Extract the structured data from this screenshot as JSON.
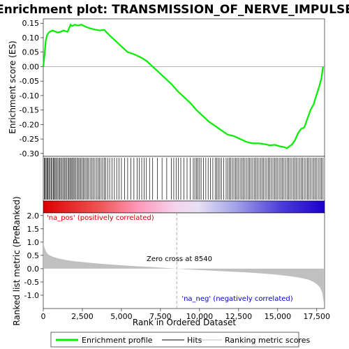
{
  "chart_data": {
    "type": "line",
    "title": "Enrichment plot: TRANSMISSION_OF_NERVE_IMPULSE",
    "top_panel": {
      "ylabel": "Enrichment score (ES)",
      "ylim": [
        -0.31,
        0.165
      ],
      "yticks": [
        0.15,
        0.1,
        0.05,
        0.0,
        -0.05,
        -0.1,
        -0.15,
        -0.2,
        -0.25,
        -0.3
      ],
      "ytick_labels": [
        "0.15",
        "0.10",
        "0.05",
        "0.00",
        "-0.05",
        "-0.10",
        "-0.15",
        "-0.20",
        "-0.25",
        "-0.30"
      ],
      "series_name": "Enrichment profile",
      "line_color": "#00ee00",
      "x": [
        0,
        80,
        160,
        250,
        400,
        600,
        900,
        1100,
        1300,
        1550,
        1750,
        1850,
        2000,
        2200,
        2450,
        2700,
        3000,
        3300,
        3600,
        3900,
        4200,
        4600,
        5000,
        5400,
        5700,
        6000,
        6300,
        6600,
        7000,
        7400,
        7800,
        8200,
        8600,
        9000,
        9400,
        9800,
        10200,
        10600,
        11000,
        11400,
        11800,
        12200,
        12600,
        13000,
        13400,
        13800,
        14200,
        14500,
        14800,
        15100,
        15400,
        15600,
        15750,
        15900,
        16100,
        16300,
        16500,
        16700,
        16900,
        17100,
        17300,
        17500,
        17650,
        17800,
        17900
      ],
      "y": [
        0.0,
        0.04,
        0.09,
        0.11,
        0.12,
        0.125,
        0.118,
        0.12,
        0.125,
        0.12,
        0.145,
        0.14,
        0.145,
        0.142,
        0.145,
        0.138,
        0.132,
        0.128,
        0.125,
        0.127,
        0.11,
        0.09,
        0.07,
        0.05,
        0.045,
        0.038,
        0.03,
        0.02,
        0.0,
        -0.02,
        -0.04,
        -0.06,
        -0.085,
        -0.105,
        -0.125,
        -0.15,
        -0.17,
        -0.19,
        -0.205,
        -0.22,
        -0.235,
        -0.24,
        -0.25,
        -0.26,
        -0.265,
        -0.265,
        -0.268,
        -0.272,
        -0.27,
        -0.275,
        -0.278,
        -0.282,
        -0.275,
        -0.27,
        -0.255,
        -0.23,
        -0.215,
        -0.21,
        -0.18,
        -0.15,
        -0.13,
        -0.095,
        -0.07,
        -0.04,
        0.0
      ]
    },
    "hits_panel": {
      "hit_positions": [
        60,
        120,
        180,
        240,
        300,
        360,
        420,
        500,
        560,
        640,
        700,
        760,
        830,
        900,
        980,
        1050,
        1120,
        1200,
        1280,
        1350,
        1420,
        1500,
        1580,
        1650,
        1720,
        1790,
        1860,
        1930,
        2000,
        2080,
        2160,
        2240,
        2320,
        2400,
        2480,
        2560,
        2640,
        2730,
        2820,
        2900,
        3000,
        3100,
        3200,
        3300,
        3400,
        3500,
        3600,
        3700,
        3800,
        3900,
        4000,
        4120,
        4250,
        4400,
        4550,
        4700,
        4850,
        5000,
        5200,
        5400,
        5600,
        5800,
        6000,
        6150,
        6300,
        6450,
        6600,
        6800,
        7000,
        7300,
        7600,
        7900,
        8200,
        8350,
        8500,
        8650,
        8800,
        9000,
        9200,
        9400,
        9600,
        9700,
        9800,
        9900,
        10000,
        10100,
        10250,
        10400,
        10550,
        10700,
        10850,
        11000,
        11100,
        11200,
        11300,
        11400,
        11550,
        11700,
        11800,
        11900,
        12000,
        12100,
        12200,
        12300,
        12400,
        12500,
        12600,
        12700,
        12800,
        12900,
        13000,
        13100,
        13200,
        13300,
        13400,
        13500,
        13600,
        13700,
        13800,
        13900,
        14000,
        14100,
        14200,
        14300,
        14400,
        14500,
        14600,
        14700,
        14800,
        14900,
        15000,
        15100,
        15200,
        15300,
        15400,
        15500,
        15600,
        15700,
        15800,
        15900,
        16000,
        16100,
        16200,
        16300,
        16400,
        16500,
        16600,
        16700,
        16800,
        16900,
        17000,
        17100,
        17200,
        17300,
        17400,
        17500,
        17600,
        17700,
        17800,
        17900
      ],
      "heatmap_left_color": "#dd0000",
      "heatmap_right_color": "#1a00cc"
    },
    "bottom_panel": {
      "ylabel": "Ranked list metric (PreRanked)",
      "ylim": [
        -1.5,
        2.1
      ],
      "yticks": [
        2.0,
        1.5,
        1.0,
        0.5,
        0.0,
        -0.5,
        -1.0
      ],
      "ytick_labels": [
        "2.0",
        "1.5",
        "1.0",
        "0.5",
        "0.0",
        "-0.5",
        "-1.0"
      ],
      "fill_color": "#c0c0c0",
      "metric_x": [
        0,
        30,
        100,
        200,
        350,
        600,
        1000,
        1500,
        2000,
        3000,
        4000,
        5000,
        6000,
        7000,
        8000,
        8540,
        9000,
        10000,
        11000,
        12000,
        13000,
        14000,
        15000,
        16000,
        16500,
        17000,
        17300,
        17500,
        17700,
        17850,
        17950
      ],
      "metric_y": [
        1.05,
        0.9,
        0.75,
        0.62,
        0.52,
        0.45,
        0.38,
        0.32,
        0.28,
        0.22,
        0.17,
        0.13,
        0.09,
        0.06,
        0.02,
        0.0,
        -0.02,
        -0.05,
        -0.08,
        -0.11,
        -0.14,
        -0.18,
        -0.23,
        -0.3,
        -0.35,
        -0.42,
        -0.5,
        -0.58,
        -0.7,
        -0.9,
        -1.3
      ],
      "zero_cross_text": "Zero cross at 8540",
      "zero_cross": 8540,
      "pos_label": "'na_pos' (positively correlated)",
      "neg_label": "'na_neg' (negatively correlated)",
      "pos_label_color": "#cc0000",
      "neg_label_color": "#0000cc"
    },
    "xlabel": "Rank in Ordered Dataset",
    "xlim": [
      0,
      18000
    ],
    "xticks": [
      0,
      2500,
      5000,
      7500,
      10000,
      12500,
      15000,
      17500
    ],
    "xtick_labels": [
      "0",
      "2,500",
      "5,000",
      "7,500",
      "10,000",
      "12,500",
      "15,000",
      "17,500"
    ],
    "legend": {
      "placement": "bottom",
      "entries": [
        {
          "label": "Enrichment profile",
          "color": "#00ee00",
          "kind": "line-thick"
        },
        {
          "label": "Hits",
          "color": "#000000",
          "kind": "line"
        },
        {
          "label": "Ranking metric scores",
          "color": "#c0c0c0",
          "kind": "line"
        }
      ]
    }
  }
}
